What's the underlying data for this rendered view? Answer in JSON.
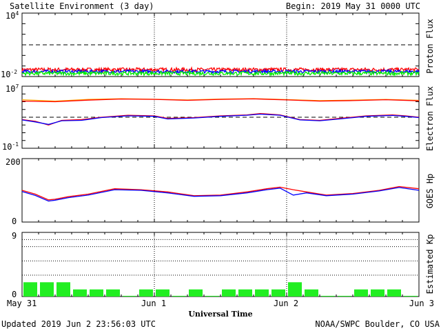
{
  "header": {
    "title": "Satellite Environment (3 day)",
    "begin": "Begin:  2019 May 31 0000 UTC"
  },
  "footer": {
    "updated": "Updated 2019 Jun  2 23:56:03 UTC",
    "source": "NOAA/SWPC Boulder, CO USA",
    "xlabel": "Universal Time"
  },
  "colors": {
    "red": "#ff0000",
    "blue": "#0000ff",
    "green": "#00ee00",
    "orange": "#ffa500",
    "kp": "#22ee22"
  },
  "chart_data": [
    {
      "type": "line",
      "ylabel": "Proton Flux",
      "yscale": "log",
      "ylim": [
        0.01,
        10000
      ],
      "yticks": {
        "bottom_base": "10",
        "bottom_exp": "-2",
        "top_base": "10",
        "top_exp": "4"
      },
      "threshold": 10,
      "x_range": [
        0,
        3
      ],
      "x_tick_labels": [
        "May 31",
        "Jun 1",
        "Jun 2",
        "Jun 3"
      ],
      "series": [
        {
          "color": "red",
          "level": 0.045,
          "noise": 0.35
        },
        {
          "color": "blue",
          "level": 0.03,
          "noise": 0.3
        },
        {
          "color": "green",
          "level": 0.02,
          "noise": 0.35
        }
      ]
    },
    {
      "type": "line",
      "ylabel": "Electron Flux",
      "yscale": "log",
      "ylim": [
        0.1,
        10000000
      ],
      "yticks": {
        "bottom_base": "10",
        "bottom_exp": "-1",
        "top_base": "10",
        "top_exp": "7"
      },
      "threshold": 1000,
      "series": [
        {
          "color": "orange",
          "x": [
            0,
            0.25,
            0.5,
            0.75,
            1.0,
            1.25,
            1.5,
            1.75,
            2.0,
            2.25,
            2.5,
            2.75,
            3.0
          ],
          "y": [
            180000,
            120000,
            200000,
            240000,
            210000,
            170000,
            220000,
            250000,
            190000,
            140000,
            160000,
            200000,
            150000
          ]
        },
        {
          "color": "red",
          "x": [
            0,
            0.25,
            0.5,
            0.75,
            1.0,
            1.25,
            1.5,
            1.75,
            2.0,
            2.25,
            2.5,
            2.75,
            3.0
          ],
          "y": [
            120000,
            100000,
            160000,
            220000,
            200000,
            150000,
            200000,
            230000,
            170000,
            120000,
            140000,
            180000,
            130000
          ]
        },
        {
          "color": "red",
          "x": [
            0,
            0.1,
            0.2,
            0.3,
            0.45,
            0.6,
            0.8,
            1.0,
            1.1,
            1.3,
            1.5,
            1.7,
            1.8,
            1.95,
            2.1,
            2.25,
            2.4,
            2.6,
            2.8,
            2.9,
            3.0
          ],
          "y": [
            500,
            300,
            100,
            400,
            500,
            1000,
            1800,
            1500,
            700,
            900,
            1500,
            2000,
            3000,
            2000,
            500,
            400,
            700,
            1500,
            2000,
            1500,
            1000
          ]
        },
        {
          "color": "blue",
          "x": [
            0,
            0.1,
            0.2,
            0.3,
            0.45,
            0.6,
            0.8,
            1.0,
            1.1,
            1.3,
            1.5,
            1.7,
            1.8,
            1.95,
            2.1,
            2.25,
            2.4,
            2.6,
            2.8,
            2.9,
            3.0
          ],
          "y": [
            450,
            250,
            120,
            350,
            400,
            900,
            1500,
            1300,
            600,
            800,
            1300,
            1800,
            2500,
            1800,
            450,
            350,
            600,
            1300,
            1700,
            1300,
            900
          ]
        }
      ]
    },
    {
      "type": "line",
      "ylabel": "GOES Hp",
      "ylim": [
        0,
        200
      ],
      "ytick_labels": [
        "0",
        "200"
      ],
      "series": [
        {
          "color": "red",
          "x": [
            0,
            0.1,
            0.2,
            0.25,
            0.35,
            0.5,
            0.7,
            0.9,
            1.1,
            1.3,
            1.5,
            1.7,
            1.85,
            1.95,
            2.05,
            2.15,
            2.3,
            2.5,
            2.7,
            2.85,
            3.0
          ],
          "y": [
            100,
            88,
            70,
            72,
            80,
            88,
            105,
            102,
            95,
            83,
            85,
            95,
            105,
            110,
            102,
            95,
            85,
            90,
            100,
            112,
            105
          ]
        },
        {
          "color": "blue",
          "x": [
            0,
            0.1,
            0.2,
            0.25,
            0.35,
            0.5,
            0.7,
            0.9,
            1.1,
            1.3,
            1.5,
            1.7,
            1.85,
            1.95,
            2.05,
            2.15,
            2.3,
            2.5,
            2.7,
            2.85,
            3.0
          ],
          "y": [
            96,
            84,
            66,
            69,
            77,
            85,
            102,
            100,
            92,
            81,
            83,
            92,
            102,
            107,
            85,
            92,
            83,
            88,
            98,
            109,
            100
          ]
        }
      ]
    },
    {
      "type": "bar",
      "ylabel": "Estimated Kp",
      "ylim": [
        0,
        9
      ],
      "ytick_labels": [
        "0",
        "9"
      ],
      "gridlines": [
        3,
        5,
        7,
        8
      ],
      "values": [
        2,
        2,
        2,
        1,
        1,
        1,
        0.1,
        1,
        1,
        0.1,
        1,
        0.1,
        1,
        1,
        1,
        1,
        2,
        1,
        0.1,
        0.1,
        1,
        1,
        1,
        0.1
      ]
    }
  ]
}
